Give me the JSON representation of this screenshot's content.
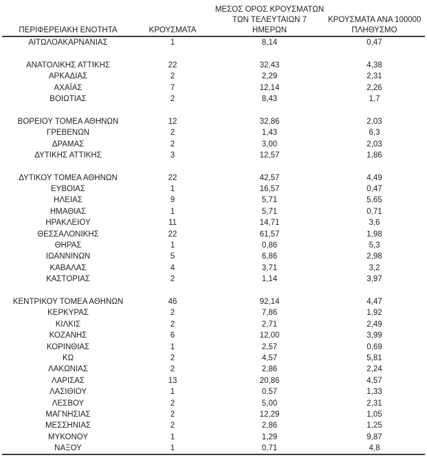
{
  "colors": {
    "text": "#212121",
    "line": "#3c3c3c",
    "background": "#ffffff"
  },
  "table": {
    "headers": {
      "region": "ΠΕΡΙΦΕΡΕΙΑΚΗ ΕΝΟΤΗΤΑ",
      "cases": "ΚΡΟΥΣΜΑΤΑ",
      "avg7_lines": [
        "ΜΕΣΟΣ ΟΡΟΣ ΚΡΟΥΣΜΑΤΩΝ",
        "ΤΩΝ ΤΕΛΕΥΤΑΙΩΝ 7",
        "ΗΜΕΡΩΝ"
      ],
      "per100k_lines": [
        "ΚΡΟΥΣΜΑΤΑ ΑΝΑ 100000",
        "ΠΛΗΘΥΣΜΟ"
      ]
    },
    "groups": [
      {
        "rows": [
          {
            "region": "ΑΙΤΩΛΟΑΚΑΡΝΑΝΙΑΣ",
            "cases": "1",
            "avg7": "8,14",
            "per100k": "0,47"
          }
        ]
      },
      {
        "rows": [
          {
            "region": "ΑΝΑΤΟΛΙΚΗΣ ΑΤΤΙΚΗΣ",
            "cases": "22",
            "avg7": "32,43",
            "per100k": "4,38"
          },
          {
            "region": "ΑΡΚΑΔΙΑΣ",
            "cases": "2",
            "avg7": "2,29",
            "per100k": "2,31"
          },
          {
            "region": "ΑΧΑΪΑΣ",
            "cases": "7",
            "avg7": "12,14",
            "per100k": "2,26"
          },
          {
            "region": "ΒΟΙΩΤΙΑΣ",
            "cases": "2",
            "avg7": "8,43",
            "per100k": "1,7"
          }
        ]
      },
      {
        "rows": [
          {
            "region": "ΒΟΡΕΙΟΥ ΤΟΜΕΑ ΑΘΗΝΩΝ",
            "cases": "12",
            "avg7": "32,86",
            "per100k": "2,03"
          },
          {
            "region": "ΓΡΕΒΕΝΩΝ",
            "cases": "2",
            "avg7": "1,43",
            "per100k": "6,3"
          },
          {
            "region": "ΔΡΑΜΑΣ",
            "cases": "2",
            "avg7": "3,00",
            "per100k": "2,03"
          },
          {
            "region": "ΔΥΤΙΚΗΣ ΑΤΤΙΚΗΣ",
            "cases": "3",
            "avg7": "12,57",
            "per100k": "1,86"
          }
        ]
      },
      {
        "rows": [
          {
            "region": "ΔΥΤΙΚΟΥ ΤΟΜΕΑ ΑΘΗΝΩΝ",
            "cases": "22",
            "avg7": "42,57",
            "per100k": "4,49"
          },
          {
            "region": "ΕΥΒΟΙΑΣ",
            "cases": "1",
            "avg7": "16,57",
            "per100k": "0,47"
          },
          {
            "region": "ΗΛΕΙΑΣ",
            "cases": "9",
            "avg7": "5,71",
            "per100k": "5,65"
          },
          {
            "region": "ΗΜΑΘΙΑΣ",
            "cases": "1",
            "avg7": "5,71",
            "per100k": "0,71"
          },
          {
            "region": "ΗΡΑΚΛΕΙΟΥ",
            "cases": "11",
            "avg7": "14,71",
            "per100k": "3,6"
          },
          {
            "region": "ΘΕΣΣΑΛΟΝΙΚΗΣ",
            "cases": "22",
            "avg7": "61,57",
            "per100k": "1,98"
          },
          {
            "region": "ΘΗΡΑΣ",
            "cases": "1",
            "avg7": "0,86",
            "per100k": "5,3"
          },
          {
            "region": "ΙΩΑΝΝΙΝΩΝ",
            "cases": "5",
            "avg7": "6,86",
            "per100k": "2,98"
          },
          {
            "region": "ΚΑΒΑΛΑΣ",
            "cases": "4",
            "avg7": "3,71",
            "per100k": "3,2"
          },
          {
            "region": "ΚΑΣΤΟΡΙΑΣ",
            "cases": "2",
            "avg7": "1,14",
            "per100k": "3,97"
          }
        ]
      },
      {
        "rows": [
          {
            "region": "ΚΕΝΤΡΙΚΟΥ ΤΟΜΕΑ ΑΘΗΝΩΝ",
            "cases": "46",
            "avg7": "92,14",
            "per100k": "4,47"
          },
          {
            "region": "ΚΕΡΚΥΡΑΣ",
            "cases": "2",
            "avg7": "7,86",
            "per100k": "1,92"
          },
          {
            "region": "ΚΙΛΚΙΣ",
            "cases": "2",
            "avg7": "2,71",
            "per100k": "2,49"
          },
          {
            "region": "ΚΟΖΑΝΗΣ",
            "cases": "6",
            "avg7": "12,00",
            "per100k": "3,99"
          },
          {
            "region": "ΚΟΡΙΝΘΙΑΣ",
            "cases": "1",
            "avg7": "2,57",
            "per100k": "0,69"
          },
          {
            "region": "ΚΩ",
            "cases": "2",
            "avg7": "4,57",
            "per100k": "5,81"
          },
          {
            "region": "ΛΑΚΩΝΙΑΣ",
            "cases": "2",
            "avg7": "2,86",
            "per100k": "2,24"
          },
          {
            "region": "ΛΑΡΙΣΑΣ",
            "cases": "13",
            "avg7": "20,86",
            "per100k": "4,57"
          },
          {
            "region": "ΛΑΣΙΘΙΟΥ",
            "cases": "1",
            "avg7": "0,57",
            "per100k": "1,33"
          },
          {
            "region": "ΛΕΣΒΟΥ",
            "cases": "2",
            "avg7": "5,00",
            "per100k": "2,31"
          },
          {
            "region": "ΜΑΓΝΗΣΙΑΣ",
            "cases": "2",
            "avg7": "12,29",
            "per100k": "1,05"
          },
          {
            "region": "ΜΕΣΣΗΝΙΑΣ",
            "cases": "2",
            "avg7": "2,86",
            "per100k": "1,25"
          },
          {
            "region": "ΜΥΚΟΝΟΥ",
            "cases": "1",
            "avg7": "1,29",
            "per100k": "9,87"
          },
          {
            "region": "ΝΑΞΟΥ",
            "cases": "1",
            "avg7": "0,71",
            "per100k": "4,8"
          }
        ]
      }
    ]
  }
}
